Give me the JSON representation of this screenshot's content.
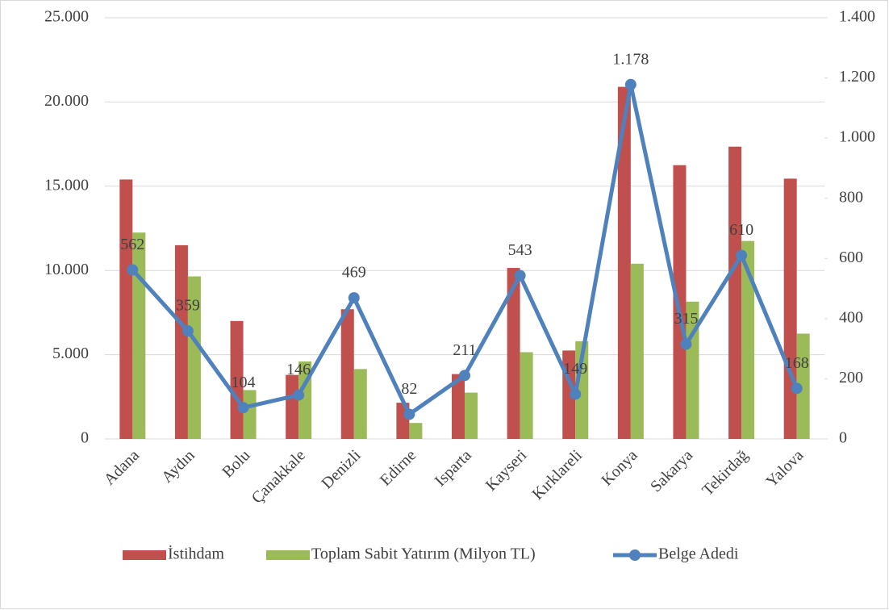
{
  "chart_data": {
    "type": "bar_line",
    "categories": [
      "Adana",
      "Aydın",
      "Bolu",
      "Çanakkale",
      "Denizli",
      "Edirne",
      "Isparta",
      "Kayseri",
      "Kırklareli",
      "Konya",
      "Sakarya",
      "Tekirdağ",
      "Yalova"
    ],
    "series": [
      {
        "name": "İstihdam",
        "color": "#c0504d",
        "type": "bar",
        "values": [
          15400,
          11500,
          7000,
          3800,
          7700,
          2150,
          3850,
          10150,
          5250,
          20900,
          16250,
          17350,
          15450
        ]
      },
      {
        "name": "Toplam Sabit Yatırım (Milyon TL)",
        "color": "#9bbb59",
        "type": "bar",
        "values": [
          12250,
          9650,
          2900,
          4600,
          4150,
          950,
          2750,
          5150,
          5800,
          10400,
          8150,
          11750,
          6250
        ]
      },
      {
        "name": "Belge Adedi",
        "color": "#4f81bd",
        "type": "line",
        "axis": "y2",
        "values": [
          562,
          359,
          104,
          146,
          469,
          82,
          211,
          543,
          149,
          1178,
          315,
          610,
          168
        ],
        "value_labels": [
          "562",
          "359",
          "104",
          "146",
          "469",
          "82",
          "211",
          "543",
          "149",
          "1.178",
          "315",
          "610",
          "168"
        ]
      }
    ],
    "ylim": [
      0,
      25000
    ],
    "yticks": [
      0,
      {
        "value": 5000,
        "label": "5.000"
      },
      {
        "value": 10000,
        "label": "10.000"
      },
      {
        "value": 15000,
        "label": "15.000"
      },
      {
        "value": 20000,
        "label": "20.000"
      },
      {
        "value": 25000,
        "label": "25.000"
      }
    ],
    "y2lim": [
      0,
      1400
    ],
    "y2ticks": [
      0,
      200,
      400,
      600,
      800,
      {
        "value": 1000,
        "label": "1.000"
      },
      {
        "value": 1200,
        "label": "1.200"
      },
      {
        "value": 1400,
        "label": "1.400"
      }
    ],
    "grid": true,
    "legend": "bottom"
  }
}
